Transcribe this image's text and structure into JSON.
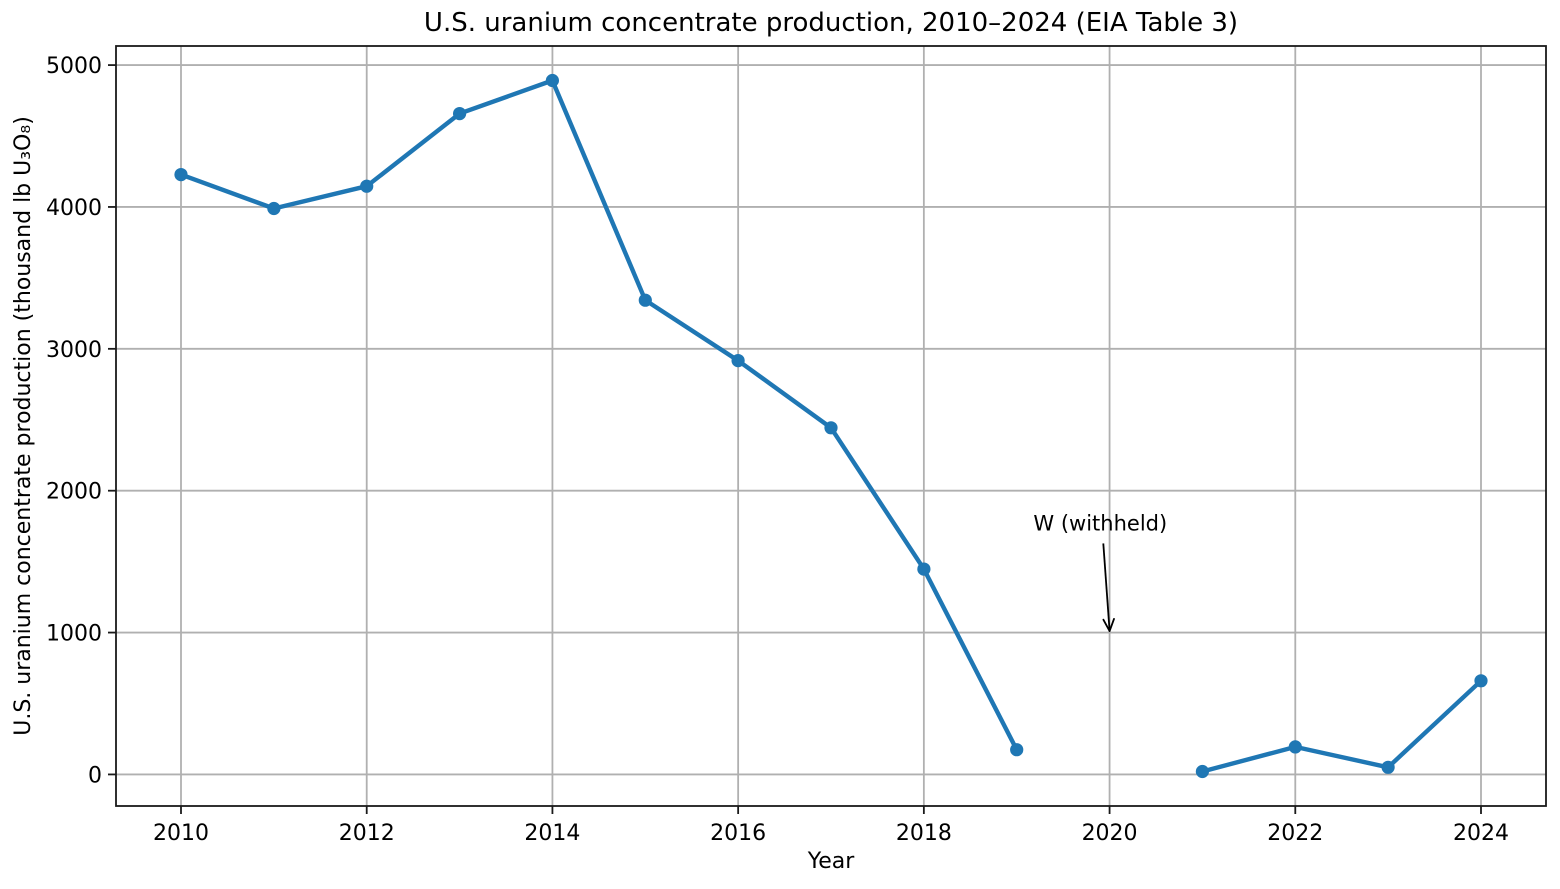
{
  "chart_data": {
    "type": "line",
    "title": "U.S. uranium concentrate production, 2010–2024 (EIA Table 3)",
    "xlabel": "Year",
    "ylabel": "U.S. uranium concentrate production (thousand lb U₃O₈)",
    "x": [
      2010,
      2011,
      2012,
      2013,
      2014,
      2015,
      2016,
      2017,
      2018,
      2019,
      2020,
      2021,
      2022,
      2023,
      2024
    ],
    "values": [
      4228,
      3989,
      4146,
      4658,
      4891,
      3343,
      2917,
      2443,
      1447,
      174,
      null,
      21,
      194,
      50,
      660
    ],
    "withheld": {
      "year": 2020,
      "symbol": "W"
    },
    "annotation": {
      "text": "W (withheld)",
      "xy": [
        2020,
        1010
      ],
      "xytext": [
        2019.9,
        1720
      ]
    },
    "xticks": [
      2010,
      2012,
      2014,
      2016,
      2018,
      2020,
      2022,
      2024
    ],
    "yticks": [
      0,
      1000,
      2000,
      3000,
      4000,
      5000
    ],
    "xlim": [
      2009.3,
      2024.7
    ],
    "ylim": [
      -222.5,
      5134.5
    ],
    "grid": true,
    "legend": "none",
    "line_color": "#1f77b4",
    "grid_color": "#b0b0b0",
    "spine_color": "#1a1a1a",
    "text_color": "#000000",
    "background_color": "#ffffff"
  }
}
